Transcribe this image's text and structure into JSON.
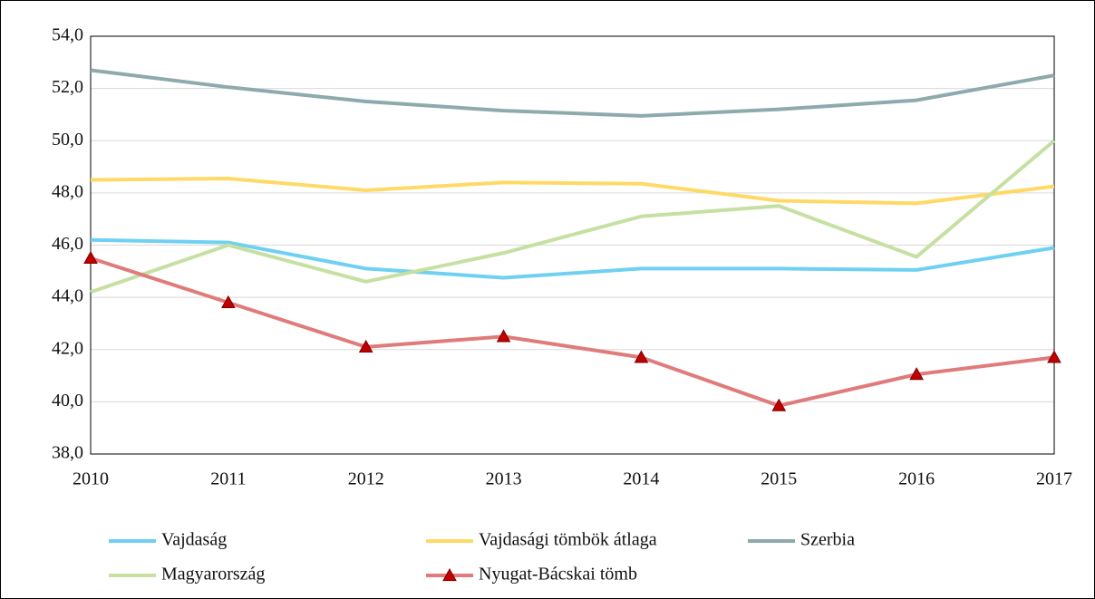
{
  "chart_data": {
    "type": "line",
    "x": [
      2010,
      2011,
      2012,
      2013,
      2014,
      2015,
      2016,
      2017
    ],
    "xlim": [
      2010,
      2017
    ],
    "xticks": [
      2010,
      2011,
      2012,
      2013,
      2014,
      2015,
      2016,
      2017
    ],
    "ylim": [
      38,
      54
    ],
    "yticks": [
      {
        "value": 38,
        "label": "38,0"
      },
      {
        "value": 40,
        "label": "40,0"
      },
      {
        "value": 42,
        "label": "42,0"
      },
      {
        "value": 44,
        "label": "44,0"
      },
      {
        "value": 46,
        "label": "46,0"
      },
      {
        "value": 48,
        "label": "48,0"
      },
      {
        "value": 50,
        "label": "50,0"
      },
      {
        "value": 52,
        "label": "52,0"
      },
      {
        "value": 54,
        "label": "54,0"
      }
    ],
    "grid": true,
    "legend": "bottom",
    "series": [
      {
        "name": "Vajdaság",
        "color": "#6fd0f2",
        "values": [
          46.2,
          46.1,
          45.1,
          44.75,
          45.1,
          45.1,
          45.05,
          45.9
        ]
      },
      {
        "name": "Vajdasági tömbök átlaga",
        "color": "#ffd966",
        "values": [
          48.5,
          48.55,
          48.1,
          48.4,
          48.35,
          47.7,
          47.6,
          48.25
        ]
      },
      {
        "name": "Szerbia",
        "color": "#8eaaad",
        "values": [
          52.7,
          52.05,
          51.5,
          51.15,
          50.95,
          51.2,
          51.55,
          52.5
        ]
      },
      {
        "name": "Magyarország",
        "color": "#c5e0a0",
        "values": [
          44.2,
          46.0,
          44.6,
          45.7,
          47.1,
          47.5,
          45.55,
          50.0
        ]
      },
      {
        "name": "Nyugat-Bácskai tömb",
        "color": "#e07b7b",
        "marker": "triangle",
        "marker_color": "#c00000",
        "values": [
          45.5,
          43.8,
          42.1,
          42.5,
          41.7,
          39.85,
          41.05,
          41.7
        ]
      }
    ]
  }
}
